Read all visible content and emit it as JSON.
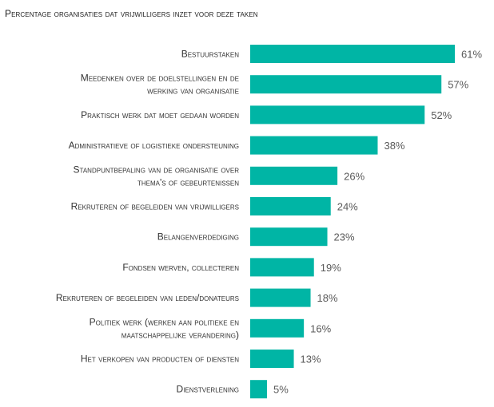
{
  "chart_data": {
    "type": "bar",
    "orientation": "horizontal",
    "title": "Percentage organisaties dat vrijwilligers inzet voor deze taken",
    "categories": [
      [
        "Bestuurstaken"
      ],
      [
        "Meedenken over de doelstellingen en de",
        "werking van organisatie"
      ],
      [
        "Praktisch werk dat moet gedaan worden"
      ],
      [
        "Administratieve of logistieke ondersteuning"
      ],
      [
        "Standpuntbepaling van de organisatie over",
        "thema's of gebeurtenissen"
      ],
      [
        "Rekruteren of begeleiden van vrijwilligers"
      ],
      [
        "Belangenverdediging"
      ],
      [
        "Fondsen werven, collecteren"
      ],
      [
        "Rekruteren of begeleiden van leden/donateurs"
      ],
      [
        "Politiek werk (werken aan politieke en",
        "maatschappelijke verandering)"
      ],
      [
        "Het verkopen van producten of diensten"
      ],
      [
        "Dienstverlening"
      ]
    ],
    "values": [
      61,
      57,
      52,
      38,
      26,
      24,
      23,
      19,
      18,
      16,
      13,
      5
    ],
    "value_labels": [
      "61%",
      "57%",
      "52%",
      "38%",
      "26%",
      "24%",
      "23%",
      "19%",
      "18%",
      "16%",
      "13%",
      "5%"
    ],
    "unit": "%",
    "bar_color": "#00b5a5",
    "xlim": [
      0,
      61
    ],
    "grid": false,
    "legend": "none"
  }
}
